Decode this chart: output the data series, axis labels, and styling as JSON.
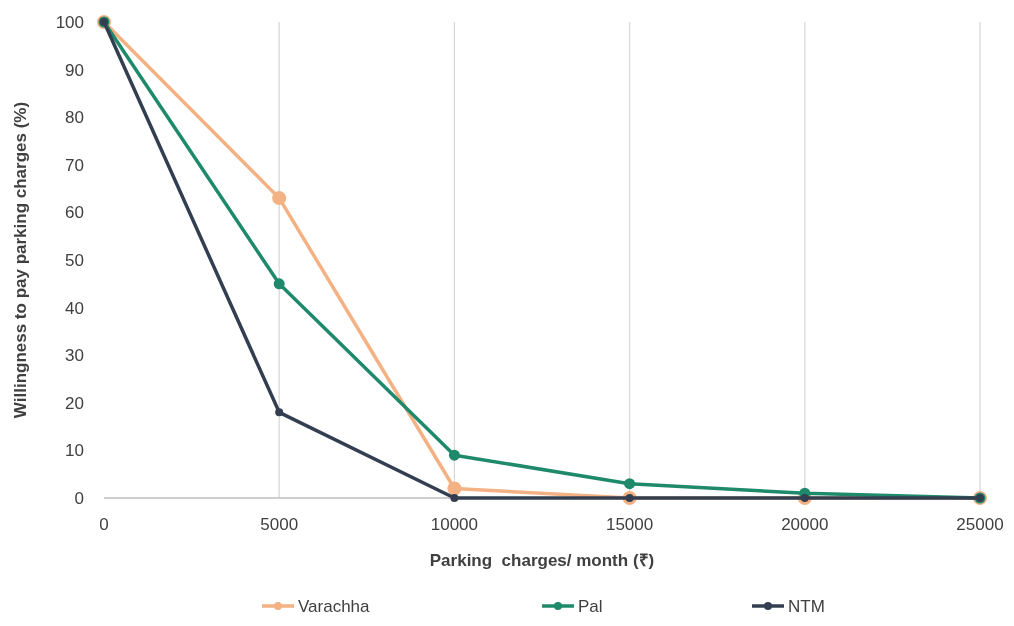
{
  "chart_data": {
    "type": "line",
    "xlabel": "Parking  charges/ month (₹)",
    "ylabel": "Willingness to pay parking charges (%)",
    "x": [
      0,
      5000,
      10000,
      15000,
      20000,
      25000
    ],
    "series": [
      {
        "name": "Varachha",
        "color": "#f4b183",
        "values": [
          100,
          63,
          2,
          0,
          0,
          0
        ]
      },
      {
        "name": "Pal",
        "color": "#1f8a6b",
        "values": [
          100,
          45,
          9,
          3,
          1,
          0
        ]
      },
      {
        "name": "NTM",
        "color": "#333f50",
        "values": [
          100,
          18,
          0,
          0,
          0,
          0
        ]
      }
    ],
    "xlim": [
      0,
      25000
    ],
    "xticks": [
      0,
      5000,
      10000,
      15000,
      20000,
      25000
    ],
    "ylim": [
      0,
      100
    ],
    "yticks": [
      0,
      10,
      20,
      30,
      40,
      50,
      60,
      70,
      80,
      90,
      100
    ],
    "grid": "x",
    "legend": "bottom",
    "marker": "circle",
    "line_style": "solid"
  }
}
